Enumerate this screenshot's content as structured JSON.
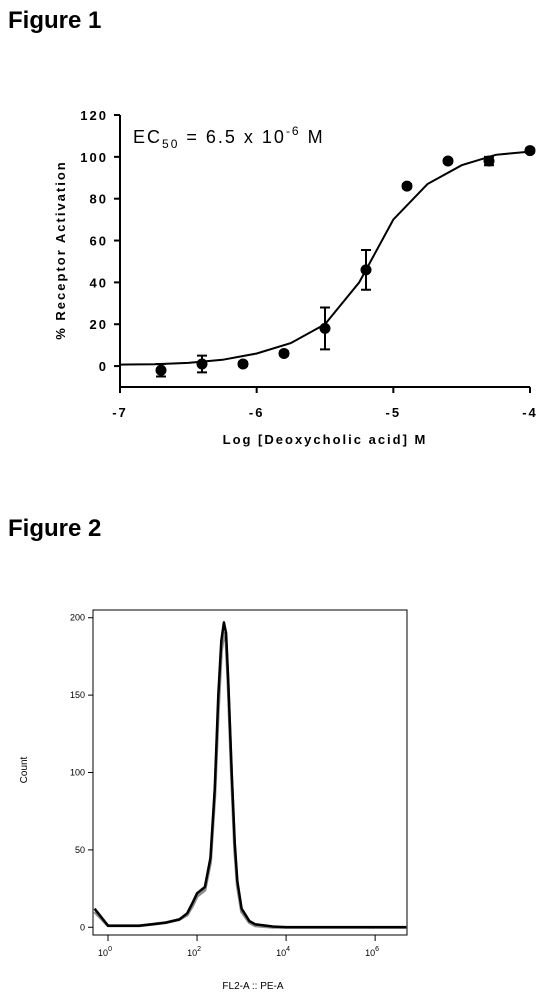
{
  "headings": [
    "Figure 1",
    "Figure 2"
  ],
  "chart_data": [
    {
      "type": "scatter",
      "annotation": {
        "prefix": "EC",
        "sub": "50",
        "middle": " = 6.5 x 10",
        "sup": "-6",
        "suffix": " M"
      },
      "xlabel": "Log [Deoxycholic acid] M",
      "ylabel": "% Receptor Activation",
      "x": [
        -6.7,
        -6.4,
        -6.1,
        -5.8,
        -5.5,
        -5.2,
        -4.9,
        -4.6,
        -4.3,
        -4.0
      ],
      "values": [
        -2,
        1,
        1,
        6,
        18,
        46,
        86,
        98,
        98,
        103
      ],
      "errors": [
        3,
        4,
        1,
        1,
        10,
        9.5,
        1,
        1,
        2,
        1
      ],
      "color": "#000000",
      "fit": {
        "x": [
          -7,
          -6.75,
          -6.5,
          -6.25,
          -6,
          -5.75,
          -5.5,
          -5.25,
          -5,
          -4.75,
          -4.5,
          -4.25,
          -4
        ],
        "values": [
          0.7,
          0.9,
          1.5,
          3,
          6,
          11,
          20,
          40,
          70,
          87,
          96,
          101,
          102.5
        ]
      },
      "xlim": [
        -7,
        -4
      ],
      "xticks": [
        -7,
        -6,
        -5,
        -4
      ],
      "ylim": [
        -10,
        120
      ],
      "yticks": [
        0,
        20,
        40,
        60,
        80,
        100,
        120
      ]
    },
    {
      "type": "line",
      "xlabel": "FL2-A :: PE-A",
      "ylabel": "Count",
      "xscale": "log",
      "x": [
        0.5,
        1,
        2,
        5,
        10,
        20,
        40,
        60,
        80,
        100,
        150,
        200,
        250,
        300,
        350,
        400,
        450,
        500,
        600,
        700,
        800,
        1000,
        1500,
        2000,
        5000,
        10000,
        100000,
        1000000,
        5000000
      ],
      "series": [
        {
          "color": "#8c8c8c",
          "values": [
            10,
            1,
            1,
            1,
            2,
            3,
            5,
            8,
            14,
            20,
            24,
            42,
            85,
            140,
            178,
            190,
            184,
            155,
            95,
            50,
            27,
            10,
            3,
            1,
            0,
            0,
            0,
            0,
            0
          ]
        },
        {
          "color": "#000000",
          "values": [
            12,
            1,
            1,
            1,
            2,
            3,
            5,
            9,
            16,
            22,
            26,
            45,
            90,
            150,
            185,
            197,
            190,
            160,
            100,
            55,
            30,
            12,
            4,
            2,
            0.5,
            0,
            0,
            0,
            0
          ]
        }
      ],
      "xlim": [
        0.46,
        5200000
      ],
      "xticks": [
        {
          "value": 1,
          "label": "10",
          "power": "0"
        },
        {
          "value": 100,
          "label": "10",
          "power": "2"
        },
        {
          "value": 10000,
          "label": "10",
          "power": "4"
        },
        {
          "value": 1000000,
          "label": "10",
          "power": "6"
        }
      ],
      "ylim": [
        -5,
        205
      ],
      "yticks": [
        0,
        50,
        100,
        150,
        200
      ]
    }
  ]
}
